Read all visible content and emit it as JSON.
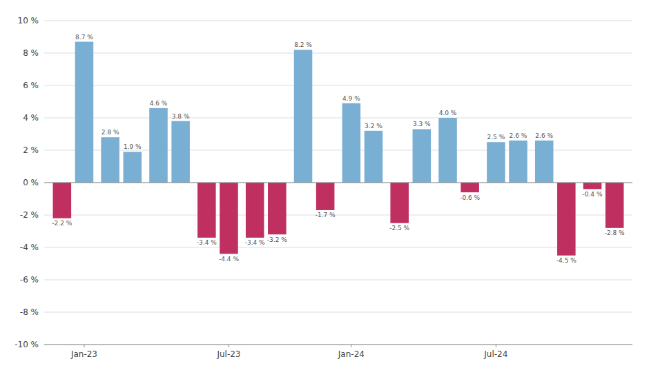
{
  "chart_data": {
    "type": "bar",
    "categories": [
      null,
      "Jan-23",
      null,
      null,
      null,
      null,
      null,
      "Jul-23",
      null,
      null,
      null,
      null,
      "Jan-24",
      null,
      null,
      null,
      null,
      null,
      "Jul-24",
      null,
      null,
      null,
      null,
      null
    ],
    "values": [
      -2.2,
      8.7,
      2.8,
      1.9,
      4.6,
      3.8,
      -3.4,
      -4.4,
      -3.4,
      -3.2,
      8.2,
      -1.7,
      4.9,
      3.2,
      -2.5,
      3.3,
      4.0,
      -0.6,
      2.5,
      2.6,
      2.6,
      -4.5,
      -0.4,
      -2.8
    ],
    "value_labels": [
      "-2.2 %",
      "8.7 %",
      "2.8 %",
      "1.9 %",
      "4.6 %",
      "3.8 %",
      "-3.4 %",
      "-4.4 %",
      "-3.4 %",
      "-3.2 %",
      "8.2 %",
      "-1.7 %",
      "4.9 %",
      "3.2 %",
      "-2.5 %",
      "3.3 %",
      "4.0 %",
      "-0.6 %",
      "2.5 %",
      "2.6 %",
      "2.6 %",
      "-4.5 %",
      "-0.4 %",
      "-2.8 %"
    ],
    "colors": [
      "#BF3060",
      "#7AAFD4",
      "#7AAFD4",
      "#7AAFD4",
      "#7AAFD4",
      "#7AAFD4",
      "#BF3060",
      "#BF3060",
      "#BF3060",
      "#BF3060",
      "#7AAFD4",
      "#BF3060",
      "#7AAFD4",
      "#7AAFD4",
      "#BF3060",
      "#7AAFD4",
      "#7AAFD4",
      "#BF3060",
      "#7AAFD4",
      "#7AAFD4",
      "#7AAFD4",
      "#BF3060",
      "#BF3060",
      "#BF3060"
    ],
    "data_labels": true,
    "ylim": [
      -10,
      10
    ],
    "yticks": [
      {
        "value": -10,
        "label": "-10 %"
      },
      {
        "value": -8,
        "label": "-8 %"
      },
      {
        "value": -6,
        "label": "-6 %"
      },
      {
        "value": -4,
        "label": "-4 %"
      },
      {
        "value": -2,
        "label": "-2 %"
      },
      {
        "value": 0,
        "label": "0 %"
      },
      {
        "value": 2,
        "label": "2 %"
      },
      {
        "value": 4,
        "label": "4 %"
      },
      {
        "value": 6,
        "label": "6 %"
      },
      {
        "value": 8,
        "label": "8 %"
      },
      {
        "value": 10,
        "label": "10 %"
      }
    ],
    "grid": true
  }
}
